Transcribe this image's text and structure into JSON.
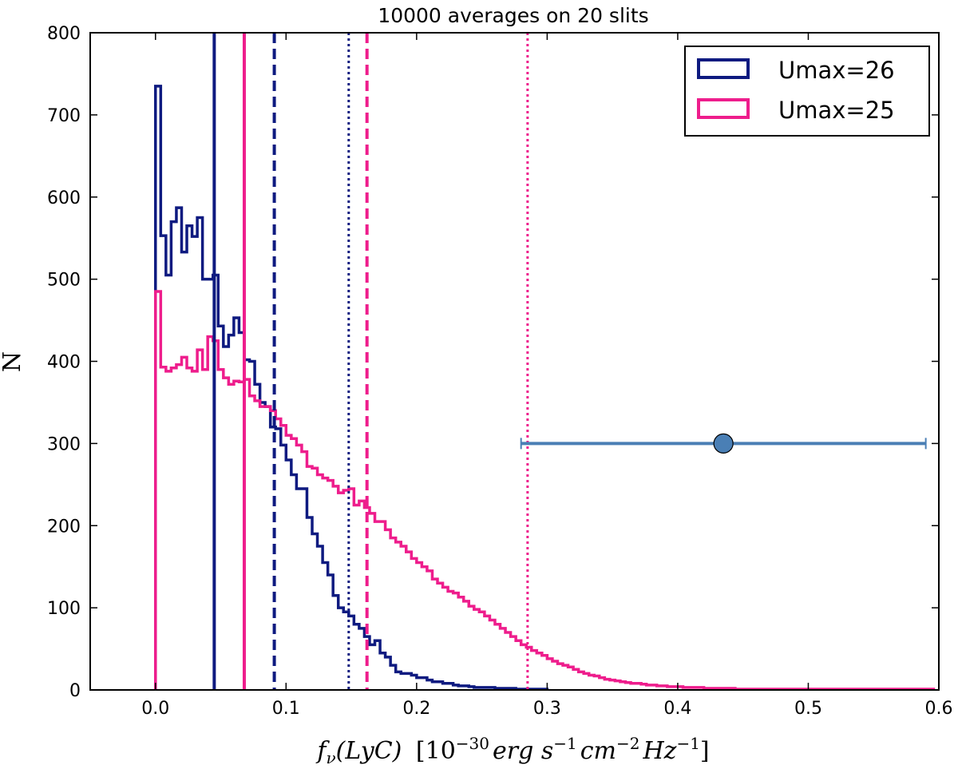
{
  "chart_data": {
    "type": "histogram",
    "title": "10000 averages on 20 slits",
    "xlabel": "f_ν(LyC) [10^-30 erg s^-1 cm^-2 Hz^-1]",
    "xlabel_parts": {
      "f": "f",
      "nu": "ν",
      "lyc": "(LyC)",
      "bracket": "[10",
      "exp": "−30",
      "erg": "erg s",
      "m1a": "−1",
      "cm": "cm",
      "m2": "−2",
      "hz": "Hz",
      "m1b": "−1",
      "close": "]"
    },
    "ylabel": "N",
    "xlim": [
      -0.05,
      0.6
    ],
    "ylim": [
      0,
      800
    ],
    "xticks": [
      0.0,
      0.1,
      0.2,
      0.3,
      0.4,
      0.5,
      0.6
    ],
    "xtick_labels": [
      "0.0",
      "0.1",
      "0.2",
      "0.3",
      "0.4",
      "0.5",
      "0.6"
    ],
    "yticks": [
      0,
      100,
      200,
      300,
      400,
      500,
      600,
      700,
      800
    ],
    "ytick_labels": [
      "0",
      "100",
      "200",
      "300",
      "400",
      "500",
      "600",
      "700",
      "800"
    ],
    "bin_start": 0.0,
    "bin_width": 0.004,
    "series": [
      {
        "name": "Umax=26",
        "color": "#0e1a80",
        "values": [
          735,
          553,
          505,
          570,
          587,
          533,
          565,
          552,
          575,
          500,
          500,
          505,
          443,
          418,
          432,
          453,
          435,
          402,
          400,
          372,
          350,
          345,
          320,
          318,
          298,
          280,
          262,
          245,
          245,
          210,
          190,
          175,
          155,
          140,
          115,
          100,
          95,
          90,
          80,
          75,
          65,
          55,
          60,
          45,
          40,
          30,
          22,
          20,
          20,
          18,
          15,
          15,
          12,
          10,
          10,
          8,
          8,
          6,
          5,
          5,
          4,
          3,
          3,
          3,
          3,
          2,
          2,
          2,
          2,
          1,
          1,
          1,
          1,
          1,
          1
        ]
      },
      {
        "name": "Umax=25",
        "color": "#ee1d8c",
        "values": [
          485,
          393,
          388,
          392,
          396,
          405,
          392,
          388,
          414,
          390,
          430,
          425,
          390,
          380,
          372,
          376,
          375,
          378,
          358,
          352,
          345,
          345,
          340,
          330,
          322,
          310,
          306,
          298,
          290,
          272,
          270,
          262,
          258,
          255,
          248,
          240,
          243,
          245,
          225,
          230,
          222,
          215,
          205,
          205,
          195,
          185,
          180,
          175,
          168,
          160,
          155,
          150,
          145,
          135,
          130,
          125,
          120,
          118,
          113,
          108,
          102,
          98,
          95,
          90,
          85,
          80,
          75,
          70,
          65,
          60,
          55,
          52,
          48,
          45,
          42,
          38,
          35,
          32,
          30,
          28,
          25,
          22,
          20,
          18,
          17,
          15,
          13,
          12,
          11,
          10,
          9,
          8,
          8,
          7,
          6,
          6,
          5,
          5,
          4,
          4,
          4,
          3,
          3,
          3,
          3,
          2,
          2,
          2,
          2,
          2,
          2,
          1,
          1,
          1,
          1,
          1,
          1,
          1,
          1,
          1,
          1,
          1,
          1,
          1,
          1,
          1,
          1,
          1,
          1,
          1,
          1,
          1,
          1,
          1,
          1,
          1,
          1,
          1,
          1,
          1,
          1,
          1,
          1,
          1,
          1,
          1,
          1,
          1,
          1
        ]
      }
    ],
    "vlines": [
      {
        "series": "Umax=26",
        "x": 0.045,
        "style": "solid"
      },
      {
        "series": "Umax=25",
        "x": 0.068,
        "style": "solid"
      },
      {
        "series": "Umax=26",
        "x": 0.091,
        "style": "dashed"
      },
      {
        "series": "Umax=26",
        "x": 0.148,
        "style": "dotted"
      },
      {
        "series": "Umax=25",
        "x": 0.162,
        "style": "dashed"
      },
      {
        "series": "Umax=25",
        "x": 0.285,
        "style": "dotted"
      }
    ],
    "errorbar_point": {
      "x": 0.435,
      "y": 300,
      "xerr_low": 0.28,
      "xerr_high": 0.59,
      "color": "#4a7fb5"
    },
    "legend": {
      "position": "top-right",
      "entries": [
        "Umax=26",
        "Umax=25"
      ]
    }
  }
}
